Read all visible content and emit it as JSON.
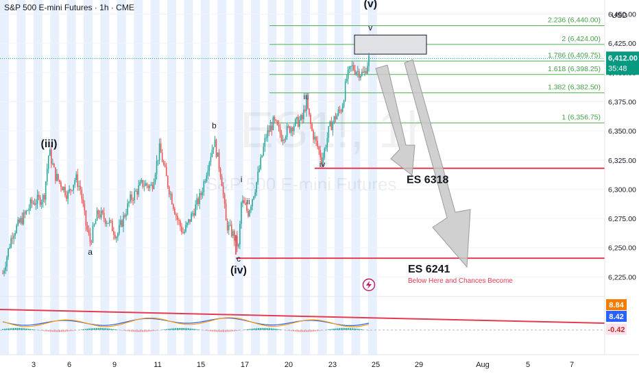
{
  "header": {
    "title": "S&P 500 E-mini Futures · 1h · CME",
    "currency": "USD"
  },
  "watermark": {
    "symbol": "ES1!, 1h",
    "name": "S&P 500 E-mini Futures"
  },
  "colors": {
    "up": "#26a69a",
    "down": "#ef5350",
    "fib": "#4caf50",
    "fib_text": "#43a047",
    "red_line": "#e53950",
    "session": "#e8f0fd",
    "current_bg": "#089981",
    "arrow_fill": "#c8c8c8",
    "arrow_stroke": "#9a9a9a"
  },
  "chart_data": {
    "type": "candlestick",
    "y_axis": {
      "min": 6210,
      "max": 6462,
      "ticks": [
        6225,
        6250,
        6275,
        6300,
        6325,
        6350,
        6375,
        6400,
        6425,
        6450
      ],
      "tick_labels": [
        "6,225.00",
        "6,250.00",
        "6,275.00",
        "6,300.00",
        "6,325.00",
        "6,350.00",
        "6,375.00",
        "6,400.00",
        "6,425.00",
        "6,450.00"
      ]
    },
    "x_axis": {
      "labels": [
        "3",
        "6",
        "9",
        "11",
        "15",
        "17",
        "20",
        "23",
        "25",
        "29",
        "Aug",
        "5",
        "7"
      ]
    },
    "current_price": {
      "value": 6412,
      "label": "6,412.00",
      "countdown": "35:48"
    },
    "fib_levels": [
      {
        "ratio": "2.236",
        "value": 6440.0,
        "label": "2.236 (6,440.00)"
      },
      {
        "ratio": "2",
        "value": 6424.0,
        "label": "2 (6,424.00)"
      },
      {
        "ratio": "1.786",
        "value": 6409.75,
        "label": "1.786 (6,409.75)"
      },
      {
        "ratio": "1.618",
        "value": 6398.25,
        "label": "1.618 (6,398.25)"
      },
      {
        "ratio": "1.382",
        "value": 6382.5,
        "label": "1.382 (6,382.50)"
      },
      {
        "ratio": "1",
        "value": 6356.75,
        "label": "1 (6,356.75)"
      }
    ],
    "wave_labels": [
      {
        "text": "(iii)",
        "t": 0.146,
        "price": 6336
      },
      {
        "text": "a",
        "t": 0.276,
        "price": 6244
      },
      {
        "text": "b",
        "t": 0.667,
        "price": 6352
      },
      {
        "text": "i",
        "t": 0.753,
        "price": 6306
      },
      {
        "text": "ii",
        "t": 0.774,
        "price": 6287
      },
      {
        "text": "c",
        "t": 0.744,
        "price": 6238
      },
      {
        "text": "(iv)",
        "t": 0.744,
        "price": 6228
      },
      {
        "text": "iii",
        "t": 0.957,
        "price": 6377
      },
      {
        "text": "iv",
        "t": 1.008,
        "price": 6319
      },
      {
        "text": "(v)",
        "t": 1.16,
        "price": 6456
      },
      {
        "text": "v",
        "t": 1.16,
        "price": 6436
      }
    ],
    "targets": [
      {
        "label": "ES 6318",
        "value": 6318
      },
      {
        "label": "ES 6241",
        "value": 6241,
        "note": "Below Here and Chances Become"
      }
    ],
    "indicator": {
      "values": [
        "8.84",
        "8.42",
        "-0.42"
      ]
    },
    "price_path": [
      [
        0.0,
        6228
      ],
      [
        0.03,
        6262
      ],
      [
        0.07,
        6278
      ],
      [
        0.09,
        6288
      ],
      [
        0.13,
        6293
      ],
      [
        0.146,
        6333
      ],
      [
        0.165,
        6312
      ],
      [
        0.19,
        6302
      ],
      [
        0.205,
        6295
      ],
      [
        0.23,
        6310
      ],
      [
        0.245,
        6300
      ],
      [
        0.262,
        6270
      ],
      [
        0.276,
        6255
      ],
      [
        0.3,
        6280
      ],
      [
        0.335,
        6272
      ],
      [
        0.36,
        6260
      ],
      [
        0.4,
        6290
      ],
      [
        0.44,
        6305
      ],
      [
        0.47,
        6302
      ],
      [
        0.495,
        6335
      ],
      [
        0.52,
        6305
      ],
      [
        0.55,
        6275
      ],
      [
        0.57,
        6262
      ],
      [
        0.6,
        6280
      ],
      [
        0.625,
        6295
      ],
      [
        0.645,
        6318
      ],
      [
        0.667,
        6342
      ],
      [
        0.69,
        6310
      ],
      [
        0.705,
        6270
      ],
      [
        0.725,
        6262
      ],
      [
        0.744,
        6250
      ],
      [
        0.753,
        6290
      ],
      [
        0.774,
        6280
      ],
      [
        0.8,
        6305
      ],
      [
        0.83,
        6345
      ],
      [
        0.855,
        6358
      ],
      [
        0.88,
        6345
      ],
      [
        0.915,
        6355
      ],
      [
        0.945,
        6360
      ],
      [
        0.957,
        6375
      ],
      [
        0.975,
        6350
      ],
      [
        1.008,
        6325
      ],
      [
        1.03,
        6352
      ],
      [
        1.05,
        6362
      ],
      [
        1.07,
        6370
      ],
      [
        1.085,
        6395
      ],
      [
        1.1,
        6405
      ],
      [
        1.12,
        6401
      ],
      [
        1.14,
        6398
      ],
      [
        1.155,
        6412
      ]
    ]
  }
}
